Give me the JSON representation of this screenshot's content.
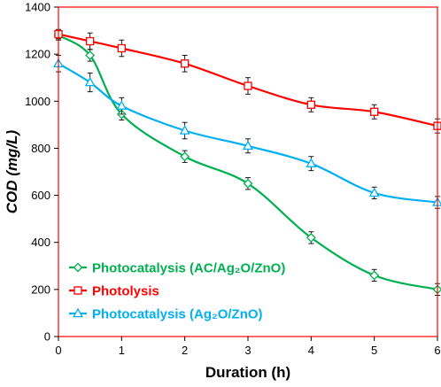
{
  "chart_data": {
    "type": "line",
    "xlabel": "Duration (h)",
    "ylabel": "COD (mg/L)",
    "xlim": [
      0,
      6
    ],
    "ylim": [
      0,
      1400
    ],
    "xticks": [
      0,
      1,
      2,
      3,
      4,
      5,
      6
    ],
    "yticks": [
      0,
      200,
      400,
      600,
      800,
      1000,
      1200,
      1400
    ],
    "x_tick_labels": [
      "0",
      "1",
      "2",
      "3",
      "4",
      "5",
      "6"
    ],
    "y_tick_labels": [
      "0",
      "200",
      "400",
      "600",
      "800",
      "1000",
      "1200",
      "1400"
    ],
    "grid": false,
    "legend_position": "bottom-left",
    "plot_border_color": "#ff0000",
    "series": [
      {
        "name": "Photocatalysis (AC/Ag₂O/ZnO)",
        "color": "#00b050",
        "marker": "diamond",
        "x": [
          0,
          0.5,
          1,
          2,
          3,
          4,
          5,
          6
        ],
        "y": [
          1280,
          1195,
          945,
          765,
          650,
          420,
          260,
          200
        ],
        "err": [
          20,
          25,
          25,
          25,
          25,
          25,
          25,
          25
        ]
      },
      {
        "name": "Photolysis",
        "color": "#ff0000",
        "marker": "square",
        "x": [
          0,
          0.5,
          1,
          2,
          3,
          4,
          5,
          6
        ],
        "y": [
          1285,
          1255,
          1225,
          1160,
          1065,
          985,
          955,
          895
        ],
        "err": [
          20,
          35,
          35,
          35,
          35,
          30,
          30,
          30
        ]
      },
      {
        "name": "Photocatalysis (Ag₂O/ZnO)",
        "color": "#00b0f0",
        "marker": "triangle",
        "x": [
          0,
          0.5,
          1,
          2,
          3,
          4,
          5,
          6
        ],
        "y": [
          1160,
          1080,
          980,
          875,
          810,
          735,
          610,
          570
        ],
        "err": [
          35,
          40,
          35,
          35,
          30,
          30,
          25,
          25
        ]
      }
    ]
  }
}
